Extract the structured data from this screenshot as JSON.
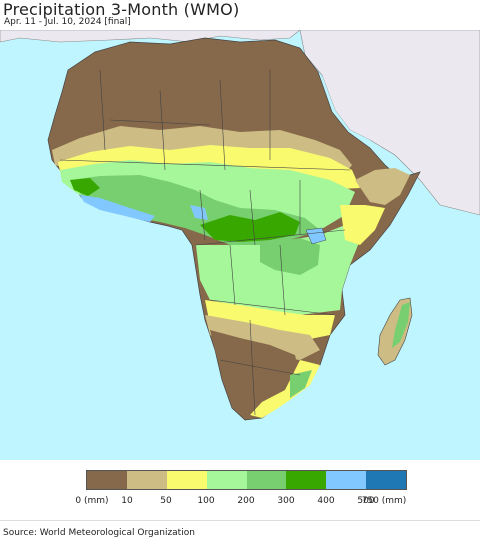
{
  "header": {
    "title": "Precipitation 3-Month (WMO)",
    "subtitle": "Apr. 11 - Jul. 10, 2024 [final]"
  },
  "legend": {
    "colors": [
      "#86694a",
      "#cdbd84",
      "#fafa6e",
      "#a6f79a",
      "#77cf70",
      "#38a800",
      "#80c8ff",
      "#1f78b4"
    ],
    "labels": [
      "0 (mm)",
      "10",
      "50",
      "100",
      "200",
      "300",
      "400",
      "500",
      "750 (mm)"
    ]
  },
  "footer": {
    "source": "Source: World Meteorological Organization"
  },
  "colors": {
    "ocean": "#bff5ff",
    "non_africa_land": "#ece8ef",
    "border": "#444444"
  }
}
